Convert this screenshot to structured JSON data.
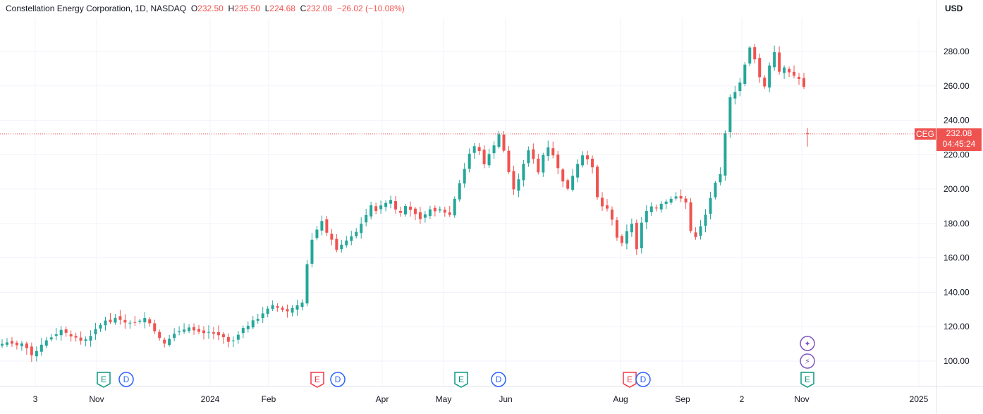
{
  "header": {
    "name": "Constellation Energy Corporation",
    "interval": "1D",
    "exchange": "NASDAQ",
    "open_label": "O",
    "open": "232.50",
    "high_label": "H",
    "high": "235.50",
    "low_label": "L",
    "low": "224.68",
    "close_label": "C",
    "close": "232.08",
    "change": "−26.02 (−10.08%)"
  },
  "currency": "USD",
  "last_price": {
    "symbol": "CEG",
    "price": "232.08",
    "countdown": "04:45:24",
    "value": 232.08
  },
  "colors": {
    "up": "#26a69a",
    "down": "#ef5350",
    "grid": "#f0f3fa",
    "price_line": "#ef5350"
  },
  "event_badges": [
    {
      "type": "E",
      "kind": "earnings",
      "color": "#089981"
    },
    {
      "type": "D",
      "kind": "dividend",
      "color": "#2962ff"
    },
    {
      "type": "E",
      "kind": "earnings",
      "color": "#f23645"
    },
    {
      "type": "D",
      "kind": "dividend",
      "color": "#2962ff"
    },
    {
      "type": "E",
      "kind": "earnings",
      "color": "#089981"
    },
    {
      "type": "D",
      "kind": "dividend",
      "color": "#2962ff"
    },
    {
      "type": "E",
      "kind": "earnings",
      "color": "#f23645"
    },
    {
      "type": "D",
      "kind": "dividend",
      "color": "#2962ff"
    },
    {
      "type": "E",
      "kind": "earnings",
      "color": "#089981"
    }
  ],
  "extra_icons": [
    "sparkle-icon",
    "lightning-icon"
  ],
  "chart_data": {
    "type": "candlestick",
    "y_ticks": [
      100,
      120,
      140,
      160,
      180,
      200,
      220,
      240,
      260,
      280
    ],
    "y_tick_labels": [
      "100.00",
      "120.00",
      "140.00",
      "160.00",
      "180.00",
      "200.00",
      "220.00",
      "240.00",
      "260.00",
      "280.00"
    ],
    "ylim": [
      92,
      295
    ],
    "x_tick_labels": [
      "3",
      "Nov",
      "2024",
      "Feb",
      "Apr",
      "May",
      "Jun",
      "Aug",
      "Sep",
      "2",
      "Nov",
      "2025"
    ],
    "grid": true,
    "anchor_closes": [
      110,
      111,
      110,
      109,
      110,
      108,
      104,
      106,
      110,
      112,
      114,
      116,
      118,
      117,
      115,
      113,
      112,
      113,
      115,
      118,
      121,
      124,
      123,
      125,
      124,
      123,
      123,
      122,
      124,
      125,
      122,
      118,
      113,
      110,
      113,
      116,
      117,
      119,
      120,
      118,
      117,
      116,
      117,
      116,
      115,
      114,
      111,
      112,
      116,
      119,
      121,
      123,
      125,
      128,
      130,
      132,
      131,
      130,
      129,
      131,
      133,
      134,
      156,
      170,
      176,
      182,
      175,
      170,
      165,
      167,
      170,
      172,
      175,
      180,
      185,
      190,
      188,
      190,
      192,
      194,
      188,
      187,
      190,
      188,
      186,
      182,
      186,
      188,
      187,
      189,
      187,
      185,
      195,
      204,
      212,
      220,
      225,
      222,
      215,
      220,
      226,
      232,
      222,
      210,
      200,
      205,
      215,
      222,
      218,
      210,
      220,
      225,
      220,
      212,
      205,
      200,
      208,
      215,
      220,
      218,
      212,
      195,
      190,
      188,
      182,
      172,
      168,
      175,
      180,
      165,
      180,
      188,
      190,
      189,
      192,
      193,
      195,
      196,
      194,
      192,
      176,
      172,
      178,
      185,
      195,
      203,
      208,
      232,
      254,
      257,
      262,
      272,
      282,
      276,
      265,
      260,
      272,
      280,
      268,
      270,
      268,
      266,
      264,
      259
    ],
    "last_candle": {
      "open": 232.5,
      "high": 235.5,
      "low": 224.68,
      "close": 232.08
    }
  }
}
